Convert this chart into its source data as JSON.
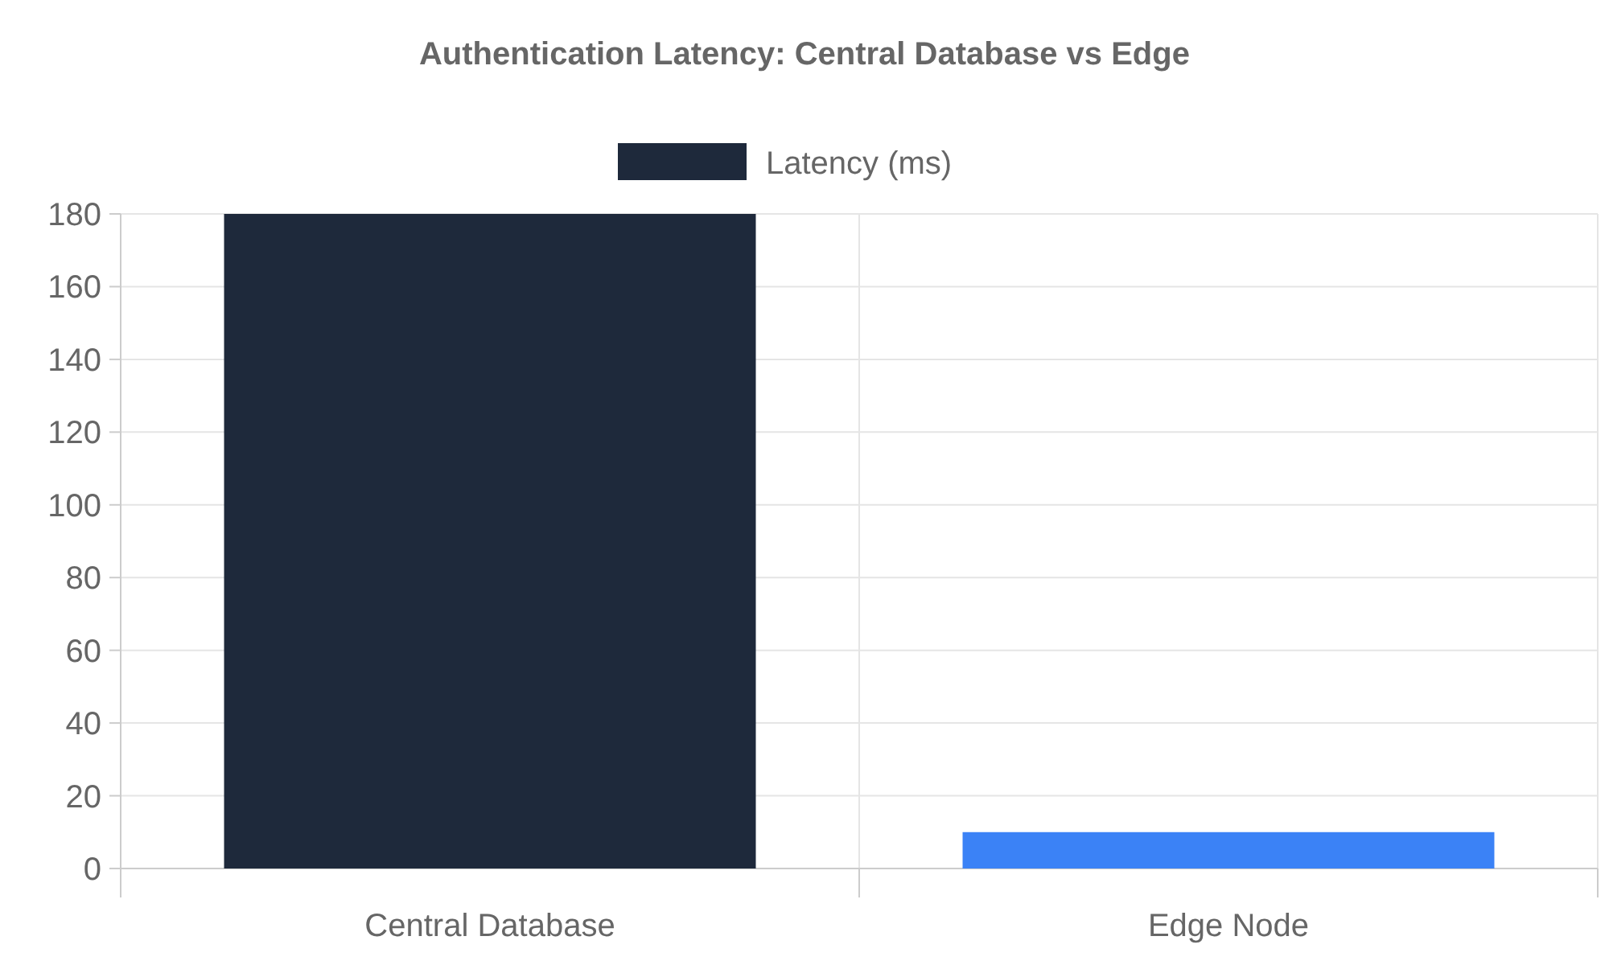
{
  "chart_data": {
    "type": "bar",
    "title": "Authentication Latency: Central Database vs Edge",
    "categories": [
      "Central Database",
      "Edge Node"
    ],
    "series": [
      {
        "name": "Latency (ms)",
        "color": "#1e293b",
        "colors": [
          "#1e293b",
          "#3b82f6"
        ],
        "values": [
          180,
          10
        ]
      }
    ],
    "ylim": [
      0,
      180
    ],
    "yticks": [
      0,
      20,
      40,
      60,
      80,
      100,
      120,
      140,
      160,
      180
    ],
    "grid": true,
    "legend": "top"
  }
}
